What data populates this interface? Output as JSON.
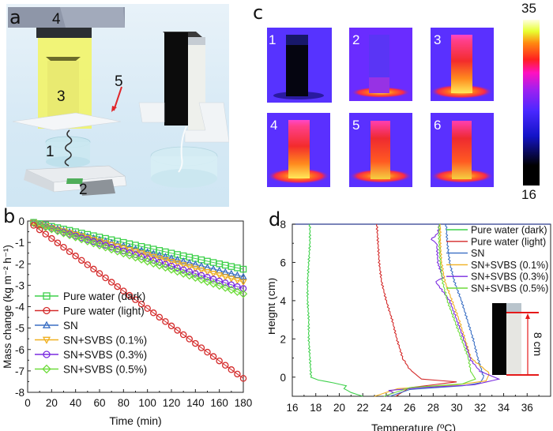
{
  "panels": {
    "a": {
      "label": "a",
      "callouts": [
        "1",
        "2",
        "3",
        "4",
        "5"
      ]
    },
    "c": {
      "label": "c",
      "images": [
        "1",
        "2",
        "3",
        "4",
        "5",
        "6"
      ],
      "colorbar": {
        "max": "35",
        "min": "16"
      }
    },
    "b": {
      "label": "b"
    },
    "d": {
      "label": "d",
      "inset_label": "8 cm"
    }
  },
  "colors": {
    "pure_water_dark": "#3dd04a",
    "pure_water_light": "#d42a2a",
    "sn": "#3a6fc4",
    "svbs_01": "#f0b020",
    "svbs_03": "#7a2be0",
    "svbs_05": "#6fdc3c"
  },
  "chart_data": [
    {
      "type": "scatter",
      "panel": "b",
      "xlabel": "Time (min)",
      "ylabel": "Mass change (kg m⁻² h⁻¹)",
      "xlim": [
        0,
        180
      ],
      "ylim": [
        -8,
        0
      ],
      "xticks": [
        "0",
        "20",
        "40",
        "60",
        "80",
        "100",
        "120",
        "140",
        "160",
        "180"
      ],
      "yticks": [
        "0",
        "-1",
        "-2",
        "-3",
        "-4",
        "-5",
        "-6",
        "-7",
        "-8"
      ],
      "legend_position": "bottom-left",
      "series": [
        {
          "name": "Pure water (dark)",
          "marker": "square",
          "slope_per_min": -0.0125,
          "end_value": -2.25,
          "x_start": 5,
          "x_step": 5
        },
        {
          "name": "Pure water (light)",
          "marker": "circle",
          "slope_per_min": -0.0408,
          "end_value": -7.35,
          "x_start": 5,
          "x_step": 5
        },
        {
          "name": "SN",
          "marker": "triangle-up",
          "slope_per_min": -0.0144,
          "end_value": -2.6,
          "x_start": 5,
          "x_step": 5
        },
        {
          "name": "SN+SVBS (0.1%)",
          "marker": "triangle-down",
          "slope_per_min": -0.0158,
          "end_value": -2.85,
          "x_start": 5,
          "x_step": 5
        },
        {
          "name": "SN+SVBS (0.3%)",
          "marker": "circle",
          "slope_per_min": -0.0175,
          "end_value": -3.15,
          "x_start": 5,
          "x_step": 5
        },
        {
          "name": "SN+SVBS (0.5%)",
          "marker": "diamond",
          "slope_per_min": -0.0189,
          "end_value": -3.4,
          "x_start": 5,
          "x_step": 5
        }
      ]
    },
    {
      "type": "line",
      "panel": "d",
      "xlabel": "Temperature (ºC)",
      "ylabel": "Height (cm)",
      "xlim": [
        16,
        38
      ],
      "ylim": [
        -1,
        8
      ],
      "xticks": [
        "16",
        "18",
        "20",
        "22",
        "24",
        "26",
        "28",
        "30",
        "32",
        "34",
        "36"
      ],
      "yticks": [
        "8",
        "6",
        "4",
        "2",
        "0"
      ],
      "legend_position": "top-right",
      "series": [
        {
          "name": "Pure water (dark)",
          "points": [
            [
              22.0,
              -1.0
            ],
            [
              21.0,
              -0.8
            ],
            [
              20.4,
              -0.6
            ],
            [
              20.6,
              -0.45
            ],
            [
              19.5,
              -0.3
            ],
            [
              18.2,
              -0.15
            ],
            [
              17.6,
              0
            ],
            [
              17.5,
              1
            ],
            [
              17.4,
              2
            ],
            [
              17.4,
              3
            ],
            [
              17.3,
              4
            ],
            [
              17.3,
              5
            ],
            [
              17.4,
              6
            ],
            [
              17.5,
              7
            ],
            [
              17.5,
              8
            ]
          ]
        },
        {
          "name": "Pure water (light)",
          "points": [
            [
              24.8,
              -1.0
            ],
            [
              26.0,
              -0.55
            ],
            [
              30.0,
              -0.25
            ],
            [
              27.0,
              -0.1
            ],
            [
              26.0,
              0.4
            ],
            [
              25.4,
              1.0
            ],
            [
              24.9,
              2.0
            ],
            [
              24.5,
              3.0
            ],
            [
              24.0,
              4.0
            ],
            [
              23.6,
              5.0
            ],
            [
              23.4,
              6.0
            ],
            [
              23.3,
              7.0
            ],
            [
              23.2,
              8.0
            ]
          ]
        },
        {
          "name": "SN",
          "points": [
            [
              24.3,
              -1.0
            ],
            [
              26.0,
              -0.65
            ],
            [
              30.5,
              -0.45
            ],
            [
              32.0,
              -0.3
            ],
            [
              32.3,
              0
            ],
            [
              31.8,
              1.0
            ],
            [
              31.4,
              2.0
            ],
            [
              30.9,
              3.0
            ],
            [
              30.4,
              4.0
            ],
            [
              29.8,
              5.0
            ],
            [
              29.4,
              6.0
            ],
            [
              29.2,
              7.0
            ],
            [
              29.1,
              8.0
            ]
          ]
        },
        {
          "name": "SN+SVBS (0.1%)",
          "points": [
            [
              23.0,
              -1.0
            ],
            [
              25.0,
              -0.6
            ],
            [
              30.0,
              -0.4
            ],
            [
              32.5,
              -0.2
            ],
            [
              32.8,
              0.2
            ],
            [
              31.2,
              1.0
            ],
            [
              30.7,
              2.0
            ],
            [
              30.2,
              3.0
            ],
            [
              29.6,
              4.0
            ],
            [
              29.0,
              5.0
            ],
            [
              28.7,
              6.0
            ],
            [
              28.6,
              7.0
            ],
            [
              28.6,
              8.0
            ]
          ]
        },
        {
          "name": "SN+SVBS (0.3%)",
          "points": [
            [
              24.0,
              -1.0
            ],
            [
              24.6,
              -0.8
            ],
            [
              24.2,
              -0.7
            ],
            [
              27.0,
              -0.55
            ],
            [
              31.5,
              -0.4
            ],
            [
              33.6,
              -0.1
            ],
            [
              32.0,
              0.3
            ],
            [
              31.2,
              0.9
            ],
            [
              30.6,
              2.0
            ],
            [
              30.0,
              3.0
            ],
            [
              29.4,
              4.0
            ],
            [
              28.2,
              5.0
            ],
            [
              28.8,
              5.2
            ],
            [
              28.4,
              6.0
            ],
            [
              28.3,
              7.0
            ],
            [
              27.8,
              7.2
            ],
            [
              28.4,
              7.5
            ],
            [
              28.5,
              8.0
            ]
          ]
        },
        {
          "name": "SN+SVBS (0.5%)",
          "points": [
            [
              23.8,
              -1.0
            ],
            [
              26.0,
              -0.55
            ],
            [
              30.5,
              -0.35
            ],
            [
              31.6,
              -0.1
            ],
            [
              31.2,
              0.3
            ],
            [
              31.0,
              1.0
            ],
            [
              30.4,
              2.0
            ],
            [
              29.8,
              3.0
            ],
            [
              29.2,
              4.0
            ],
            [
              28.8,
              5.0
            ],
            [
              28.6,
              6.0
            ],
            [
              28.5,
              7.0
            ],
            [
              28.5,
              8.0
            ]
          ]
        }
      ]
    }
  ]
}
